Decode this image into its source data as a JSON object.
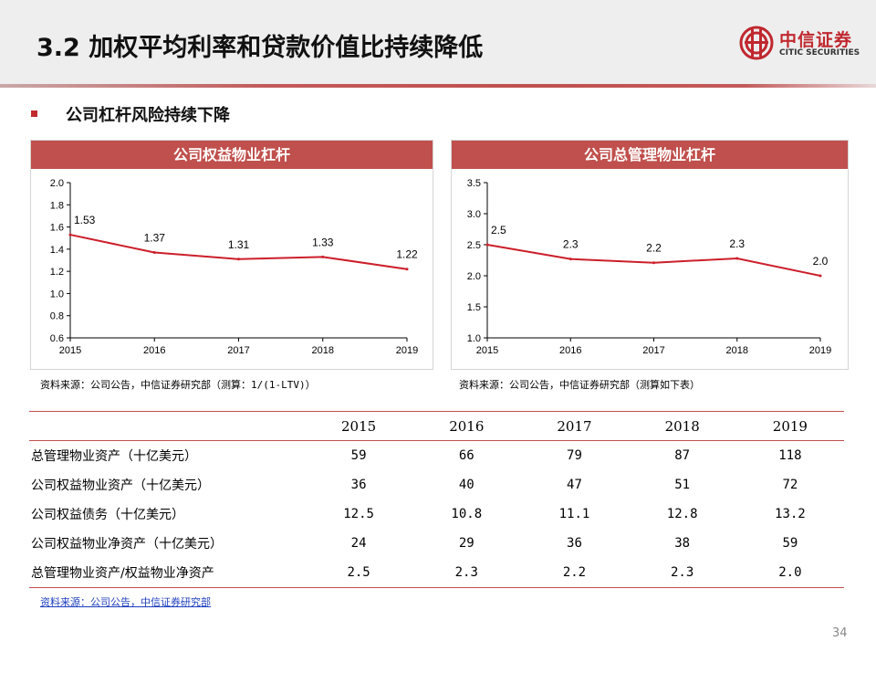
{
  "header": {
    "title": "3.2 加权平均利率和贷款价值比持续降低",
    "logo_cn": "中信证券",
    "logo_en": "CITIC SECURITIES"
  },
  "section": {
    "title": "公司杠杆风险持续下降"
  },
  "colors": {
    "accent": "#c0504d",
    "line": "#cc1f2b",
    "brand_red": "#c0282f",
    "source_link": "#1f3fbf"
  },
  "chart_data": [
    {
      "type": "line",
      "title": "公司权益物业杠杆",
      "x": [
        "2015",
        "2016",
        "2017",
        "2018",
        "2019"
      ],
      "values": [
        1.53,
        1.37,
        1.31,
        1.33,
        1.22
      ],
      "data_labels": [
        "1.53",
        "1.37",
        "1.31",
        "1.33",
        "1.22"
      ],
      "yticks": [
        "0.6",
        "0.8",
        "1.0",
        "1.2",
        "1.4",
        "1.6",
        "1.8",
        "2.0"
      ],
      "ylim": [
        0.6,
        2.0
      ],
      "grid": false,
      "legend": "none",
      "source": "资料来源：公司公告，中信证券研究部（测算：1/(1-LTV)）"
    },
    {
      "type": "line",
      "title": "公司总管理物业杠杆",
      "x": [
        "2015",
        "2016",
        "2017",
        "2018",
        "2019"
      ],
      "values": [
        2.5,
        2.27,
        2.21,
        2.28,
        2.0
      ],
      "data_labels": [
        "2.5",
        "2.3",
        "2.2",
        "2.3",
        "2.0"
      ],
      "yticks": [
        "1.0",
        "1.5",
        "2.0",
        "2.5",
        "3.0",
        "3.5"
      ],
      "ylim": [
        1.0,
        3.5
      ],
      "grid": false,
      "legend": "none",
      "source": "资料来源：公司公告，中信证券研究部（测算如下表）"
    }
  ],
  "table": {
    "headers": [
      "",
      "2015",
      "2016",
      "2017",
      "2018",
      "2019"
    ],
    "rows": [
      {
        "label": "总管理物业资产（十亿美元）",
        "values": [
          "59",
          "66",
          "79",
          "87",
          "118"
        ]
      },
      {
        "label": "公司权益物业资产（十亿美元）",
        "values": [
          "36",
          "40",
          "47",
          "51",
          "72"
        ]
      },
      {
        "label": "公司权益债务（十亿美元）",
        "values": [
          "12.5",
          "10.8",
          "11.1",
          "12.8",
          "13.2"
        ]
      },
      {
        "label": "公司权益物业净资产（十亿美元）",
        "values": [
          "24",
          "29",
          "36",
          "38",
          "59"
        ]
      },
      {
        "label": "总管理物业资产/权益物业净资产",
        "values": [
          "2.5",
          "2.3",
          "2.2",
          "2.3",
          "2.0"
        ]
      }
    ],
    "source": "资料来源：公司公告，中信证券研究部"
  },
  "page_number": "34"
}
